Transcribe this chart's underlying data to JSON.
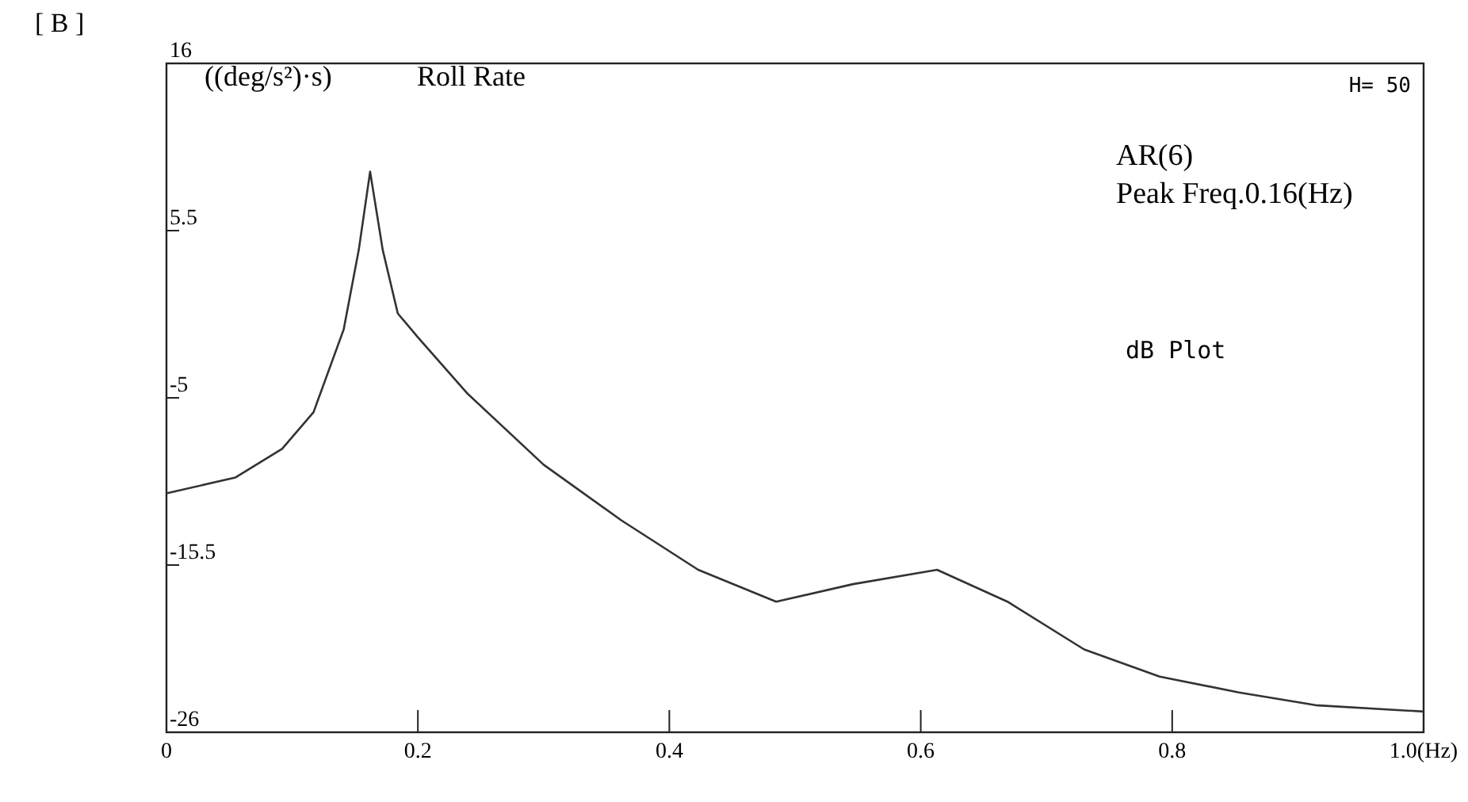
{
  "chart_data": {
    "type": "line",
    "title": "Roll Rate",
    "ylabel": "((deg/s²)·s)",
    "annotations": [
      "[ B ]",
      "H= 50",
      "AR(6)",
      "Peak Freq.0.16(Hz)",
      "dB Plot"
    ],
    "x": [
      0,
      0.055,
      0.092,
      0.117,
      0.141,
      0.153,
      0.162,
      0.172,
      0.184,
      0.2,
      0.239,
      0.3,
      0.362,
      0.423,
      0.485,
      0.546,
      0.613,
      0.669,
      0.73,
      0.79,
      0.853,
      0.914,
      1.0
    ],
    "series": [
      {
        "color": "#333333",
        "values": [
          -11.0,
          -10.0,
          -8.2,
          -5.9,
          -0.7,
          4.3,
          9.2,
          4.3,
          0.3,
          -1.2,
          -4.7,
          -9.2,
          -12.7,
          -15.8,
          -17.8,
          -16.7,
          -15.8,
          -17.8,
          -20.8,
          -22.5,
          -23.5,
          -24.3,
          -24.7
        ]
      }
    ],
    "xlim": [
      0,
      1.0
    ],
    "xticks": [
      0,
      0.2,
      0.4,
      0.6,
      0.8,
      {
        "value": 1.0,
        "label": "1.0(Hz)"
      }
    ],
    "ylim": [
      -26,
      16
    ],
    "yticks": [
      -26,
      -15.5,
      -5,
      5.5,
      16
    ],
    "grid": false,
    "marker": "none",
    "line_style": "solid"
  }
}
